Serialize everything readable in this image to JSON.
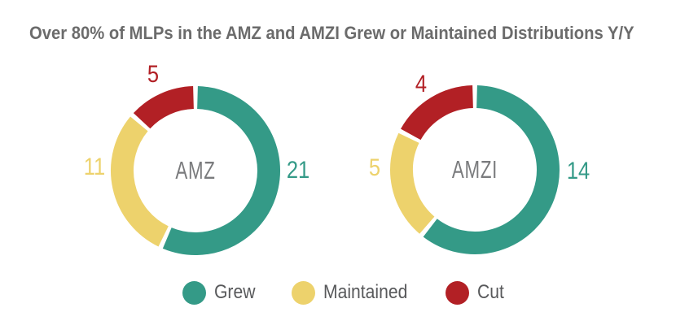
{
  "title": "Over 80% of MLPs in the AMZ and AMZI Grew or Maintained Distributions Y/Y",
  "colors": {
    "grew": "#349a87",
    "maintained": "#edd26c",
    "cut": "#b22025",
    "title_text": "#6b6b6b",
    "center_label_text": "#7a7b7d",
    "legend_text": "#58595b"
  },
  "chart_data": [
    {
      "type": "pie",
      "subtype": "donut",
      "name": "AMZ",
      "center_label": "AMZ",
      "segments": [
        {
          "label": "Grew",
          "value": 21,
          "color": "#349a87"
        },
        {
          "label": "Maintained",
          "value": 11,
          "color": "#edd26c"
        },
        {
          "label": "Cut",
          "value": 5,
          "color": "#b22025"
        }
      ]
    },
    {
      "type": "pie",
      "subtype": "donut",
      "name": "AMZI",
      "center_label": "AMZI",
      "segments": [
        {
          "label": "Grew",
          "value": 14,
          "color": "#349a87"
        },
        {
          "label": "Maintained",
          "value": 5,
          "color": "#edd26c"
        },
        {
          "label": "Cut",
          "value": 4,
          "color": "#b22025"
        }
      ]
    }
  ],
  "legend": {
    "items": [
      {
        "label": "Grew",
        "color": "#349a87"
      },
      {
        "label": "Maintained",
        "color": "#edd26c"
      },
      {
        "label": "Cut",
        "color": "#b22025"
      }
    ]
  }
}
